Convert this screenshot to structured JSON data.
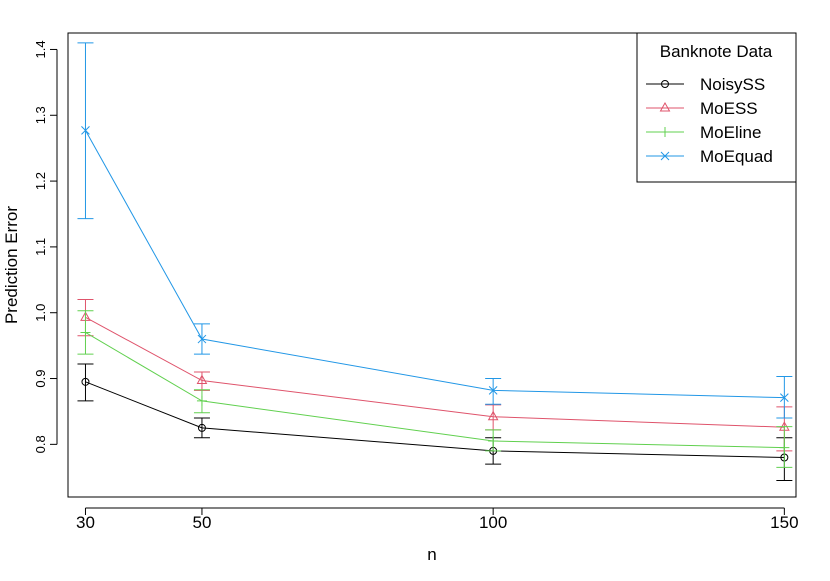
{
  "chart_data": {
    "type": "line",
    "xlabel": "n",
    "ylabel": "Prediction Error",
    "x": [
      30,
      50,
      100,
      150
    ],
    "xticks": [
      30,
      50,
      100,
      150
    ],
    "xlim": [
      27,
      152
    ],
    "yticks": [
      0.8,
      0.9,
      1.0,
      1.1,
      1.2,
      1.3,
      1.4
    ],
    "ytick_labels": [
      "0.8",
      "0.9",
      "1.0",
      "1.1",
      "1.2",
      "1.3",
      "1.4"
    ],
    "ylim": [
      0.72,
      1.425
    ],
    "grid": false,
    "legend": {
      "title": "Banknote Data",
      "placement": "top-right"
    },
    "series": [
      {
        "name": "NoisySS",
        "color": "#000000",
        "marker": "circle",
        "values": [
          0.895,
          0.825,
          0.79,
          0.78
        ],
        "err_low": [
          0.866,
          0.81,
          0.77,
          0.745
        ],
        "err_high": [
          0.922,
          0.84,
          0.81,
          0.81
        ]
      },
      {
        "name": "MoESS",
        "color": "#DF536B",
        "marker": "triangle",
        "values": [
          0.993,
          0.897,
          0.842,
          0.826
        ],
        "err_low": [
          0.965,
          0.882,
          0.822,
          0.79
        ],
        "err_high": [
          1.02,
          0.91,
          0.86,
          0.857
        ]
      },
      {
        "name": "MoEline",
        "color": "#61D04F",
        "marker": "plus",
        "values": [
          0.97,
          0.866,
          0.805,
          0.795
        ],
        "err_low": [
          0.937,
          0.848,
          0.79,
          0.765
        ],
        "err_high": [
          1.003,
          0.883,
          0.822,
          0.827
        ]
      },
      {
        "name": "MoEquad",
        "color": "#2297E6",
        "marker": "cross",
        "values": [
          1.277,
          0.96,
          0.882,
          0.871
        ],
        "err_low": [
          1.143,
          0.937,
          0.861,
          0.84
        ],
        "err_high": [
          1.41,
          0.983,
          0.9,
          0.903
        ]
      }
    ]
  }
}
